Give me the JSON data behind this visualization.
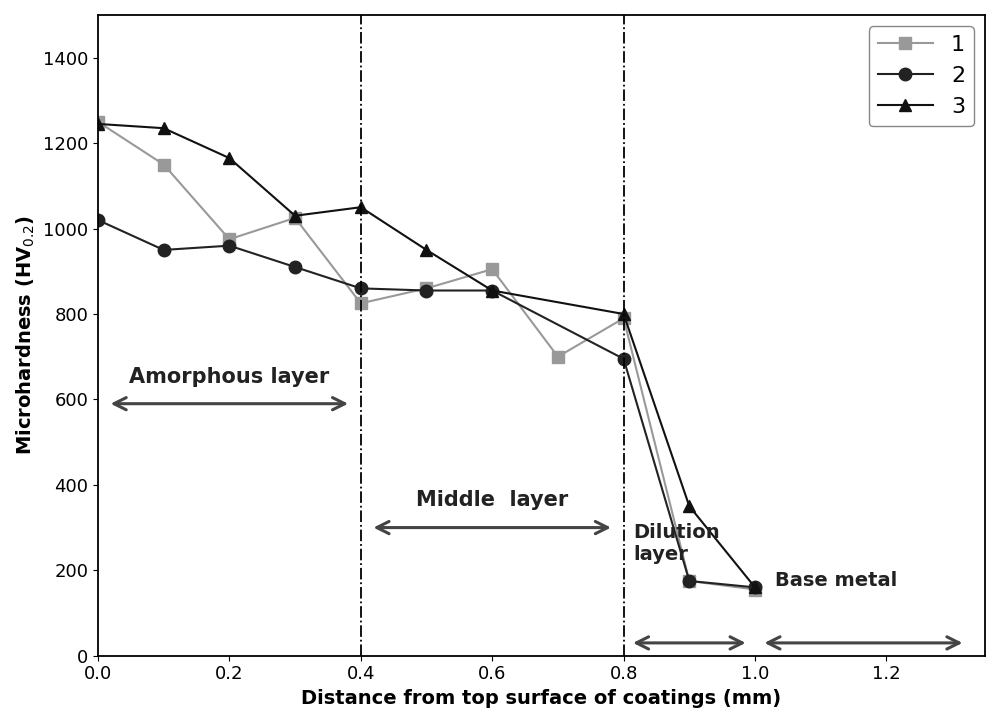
{
  "series": {
    "1": {
      "x": [
        0.0,
        0.1,
        0.2,
        0.3,
        0.4,
        0.5,
        0.6,
        0.7,
        0.8,
        0.9,
        1.0
      ],
      "y": [
        1250,
        1150,
        975,
        1025,
        825,
        860,
        905,
        700,
        790,
        175,
        155
      ],
      "color": "#999999",
      "marker": "s",
      "label": "1"
    },
    "2": {
      "x": [
        0.0,
        0.1,
        0.2,
        0.3,
        0.4,
        0.5,
        0.6,
        0.8,
        0.9,
        1.0
      ],
      "y": [
        1020,
        950,
        960,
        910,
        860,
        855,
        855,
        695,
        175,
        160
      ],
      "color": "#222222",
      "marker": "o",
      "label": "2"
    },
    "3": {
      "x": [
        0.0,
        0.1,
        0.2,
        0.3,
        0.4,
        0.5,
        0.6,
        0.8,
        0.9,
        1.0
      ],
      "y": [
        1245,
        1235,
        1165,
        1030,
        1050,
        950,
        855,
        800,
        350,
        160
      ],
      "color": "#111111",
      "marker": "^",
      "label": "3"
    }
  },
  "xlabel": "Distance from top surface of coatings (mm)",
  "ylabel": "Microhardness (HV$_{0.2}$)",
  "xlim": [
    0.0,
    1.35
  ],
  "ylim": [
    0,
    1500
  ],
  "yticks": [
    0,
    200,
    400,
    600,
    800,
    1000,
    1200,
    1400
  ],
  "xticks": [
    0.0,
    0.2,
    0.4,
    0.6,
    0.8,
    1.0,
    1.2
  ],
  "vline1_x": 0.4,
  "vline2_x": 0.8,
  "bg_color": "#ffffff",
  "marker_size": 9,
  "linewidth": 1.5,
  "legend_fontsize": 16,
  "axis_fontsize": 14,
  "tick_fontsize": 13,
  "annotation_fontsize": 15
}
